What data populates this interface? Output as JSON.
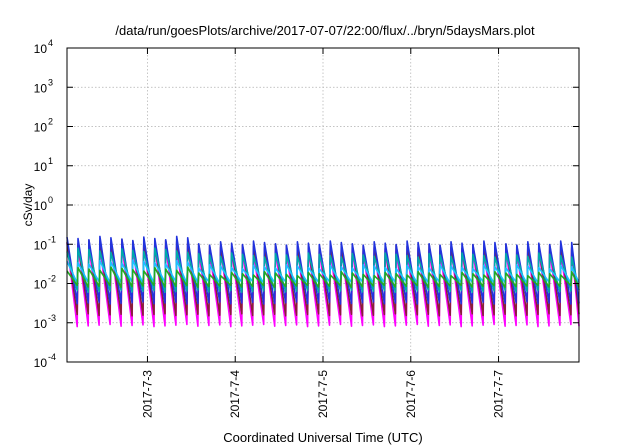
{
  "chart_data": {
    "type": "line",
    "title": "/data/run/goesPlots/archive/2017-07-07/22:00/flux/../bryn/5daysMars.plot",
    "xlabel": "Coordinated Universal Time (UTC)",
    "ylabel": "cSv/day",
    "yscale": "log",
    "ylim": [
      0.0001,
      10000
    ],
    "y_ticks": [
      {
        "base": "10",
        "exp": "-4"
      },
      {
        "base": "10",
        "exp": "-3"
      },
      {
        "base": "10",
        "exp": "-2"
      },
      {
        "base": "10",
        "exp": "-1"
      },
      {
        "base": "10",
        "exp": "0"
      },
      {
        "base": "10",
        "exp": "1"
      },
      {
        "base": "10",
        "exp": "2"
      },
      {
        "base": "10",
        "exp": "3"
      },
      {
        "base": "10",
        "exp": "4"
      }
    ],
    "xlim": [
      "2017-07-02 02:00",
      "2017-07-07 22:00"
    ],
    "x_ticks": [
      "2017-7-3",
      "2017-7-4",
      "2017-7-5",
      "2017-7-6",
      "2017-7-7"
    ],
    "grid": true,
    "legend": "none",
    "oscillation_period_hours": 3,
    "series": [
      {
        "color": "#ff00ff",
        "peak": 0.08,
        "trough": 0.0008
      },
      {
        "color": "#8a1f3a",
        "peak": 0.1,
        "trough": 0.0015
      },
      {
        "color": "#2233dd",
        "peak": 0.12,
        "trough": 0.003
      },
      {
        "color": "#00aaaa",
        "peak": 0.06,
        "trough": 0.006
      },
      {
        "color": "#1cc0ff",
        "peak": 0.03,
        "trough": 0.01
      },
      {
        "color": "#22aa22",
        "peak": 0.02,
        "trough": 0.008
      }
    ]
  }
}
